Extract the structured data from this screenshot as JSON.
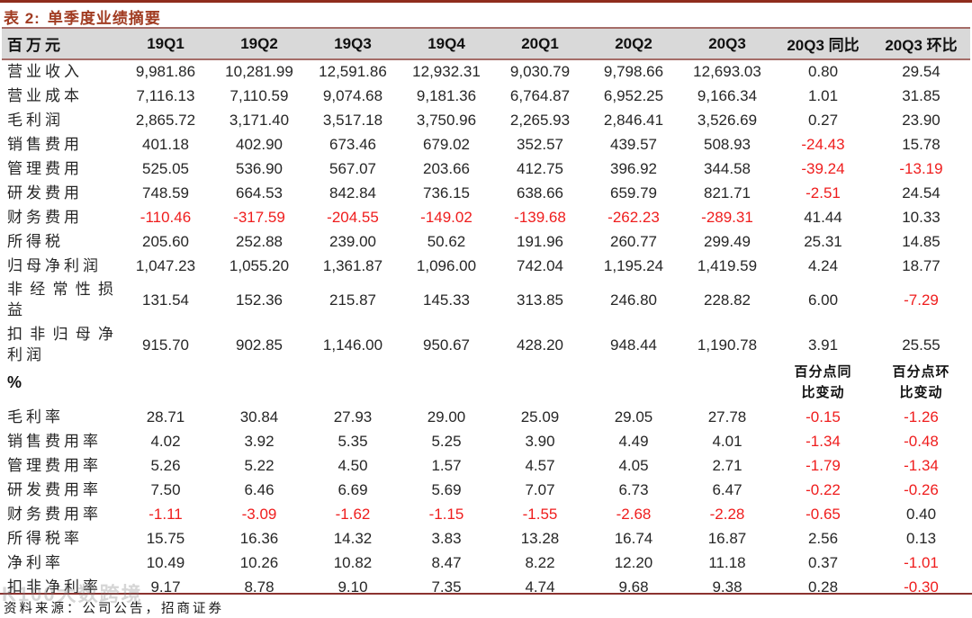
{
  "title": {
    "prefix": "表 2:",
    "text": "单季度业绩摘要"
  },
  "main_table": {
    "unit_header": "百万元",
    "columns": [
      "19Q1",
      "19Q2",
      "19Q3",
      "19Q4",
      "20Q1",
      "20Q2",
      "20Q3",
      "20Q3 同比",
      "20Q3 环比"
    ],
    "rows": [
      {
        "label": "营业收入",
        "values": [
          "9,981.86",
          "10,281.99",
          "12,591.86",
          "12,932.31",
          "9,030.79",
          "9,798.66",
          "12,693.03",
          "0.80",
          "29.54"
        ]
      },
      {
        "label": "营业成本",
        "values": [
          "7,116.13",
          "7,110.59",
          "9,074.68",
          "9,181.36",
          "6,764.87",
          "6,952.25",
          "9,166.34",
          "1.01",
          "31.85"
        ]
      },
      {
        "label": "毛利润",
        "values": [
          "2,865.72",
          "3,171.40",
          "3,517.18",
          "3,750.96",
          "2,265.93",
          "2,846.41",
          "3,526.69",
          "0.27",
          "23.90"
        ]
      },
      {
        "label": "销售费用",
        "values": [
          "401.18",
          "402.90",
          "673.46",
          "679.02",
          "352.57",
          "439.57",
          "508.93",
          "-24.43",
          "15.78"
        ]
      },
      {
        "label": "管理费用",
        "values": [
          "525.05",
          "536.90",
          "567.07",
          "203.66",
          "412.75",
          "396.92",
          "344.58",
          "-39.24",
          "-13.19"
        ]
      },
      {
        "label": "研发费用",
        "values": [
          "748.59",
          "664.53",
          "842.84",
          "736.15",
          "638.66",
          "659.79",
          "821.71",
          "-2.51",
          "24.54"
        ]
      },
      {
        "label": "财务费用",
        "values": [
          "-110.46",
          "-317.59",
          "-204.55",
          "-149.02",
          "-139.68",
          "-262.23",
          "-289.31",
          "41.44",
          "10.33"
        ]
      },
      {
        "label": "所得税",
        "values": [
          "205.60",
          "252.88",
          "239.00",
          "50.62",
          "191.96",
          "260.77",
          "299.49",
          "25.31",
          "14.85"
        ]
      },
      {
        "label": "归母净利润",
        "values": [
          "1,047.23",
          "1,055.20",
          "1,361.87",
          "1,096.00",
          "742.04",
          "1,195.24",
          "1,419.59",
          "4.24",
          "18.77"
        ]
      },
      {
        "label": "非经常性损益",
        "values": [
          "131.54",
          "152.36",
          "215.87",
          "145.33",
          "313.85",
          "246.80",
          "228.82",
          "6.00",
          "-7.29"
        ]
      },
      {
        "label": "扣非归母净利润",
        "values": [
          "915.70",
          "902.85",
          "1,146.00",
          "950.67",
          "428.20",
          "948.44",
          "1,190.78",
          "3.91",
          "25.55"
        ]
      }
    ]
  },
  "percent_table": {
    "unit_header": "%",
    "yoy_header": "百分点同比变动",
    "qoq_header": "百分点环比变动",
    "rows": [
      {
        "label": "毛利率",
        "values": [
          "28.71",
          "30.84",
          "27.93",
          "29.00",
          "25.09",
          "29.05",
          "27.78",
          "-0.15",
          "-1.26"
        ]
      },
      {
        "label": "销售费用率",
        "values": [
          "4.02",
          "3.92",
          "5.35",
          "5.25",
          "3.90",
          "4.49",
          "4.01",
          "-1.34",
          "-0.48"
        ]
      },
      {
        "label": "管理费用率",
        "values": [
          "5.26",
          "5.22",
          "4.50",
          "1.57",
          "4.57",
          "4.05",
          "2.71",
          "-1.79",
          "-1.34"
        ]
      },
      {
        "label": "研发费用率",
        "values": [
          "7.50",
          "6.46",
          "6.69",
          "5.69",
          "7.07",
          "6.73",
          "6.47",
          "-0.22",
          "-0.26"
        ]
      },
      {
        "label": "财务费用率",
        "values": [
          "-1.11",
          "-3.09",
          "-1.62",
          "-1.15",
          "-1.55",
          "-2.68",
          "-2.28",
          "-0.65",
          "0.40"
        ]
      },
      {
        "label": "所得税率",
        "values": [
          "15.75",
          "16.36",
          "14.32",
          "3.83",
          "13.28",
          "16.74",
          "16.87",
          "2.56",
          "0.13"
        ]
      },
      {
        "label": "净利率",
        "values": [
          "10.49",
          "10.26",
          "10.82",
          "8.47",
          "8.22",
          "12.20",
          "11.18",
          "0.37",
          "-1.01"
        ]
      },
      {
        "label": "扣非净利率",
        "values": [
          "9.17",
          "8.78",
          "9.10",
          "7.35",
          "4.74",
          "9.68",
          "9.38",
          "0.28",
          "-0.30"
        ]
      }
    ]
  },
  "footer": {
    "source": "资料来源：公司公告，招商证券"
  },
  "watermark": "K100大数跨境",
  "colors": {
    "accent": "#a13c22",
    "rule_dark": "#8c3330",
    "header_border": "#a56d68",
    "header_bg": "#d9d9d9",
    "negative": "#ef1d1d",
    "text": "#262626"
  }
}
